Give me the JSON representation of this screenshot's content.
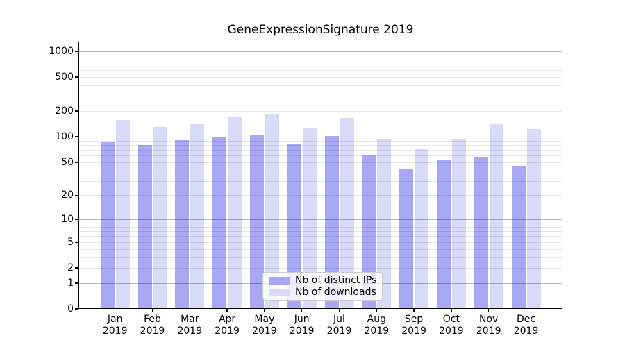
{
  "chart_data": {
    "type": "bar",
    "title": "GeneExpressionSignature 2019",
    "x_year": "2019",
    "categories": [
      "Jan",
      "Feb",
      "Mar",
      "Apr",
      "May",
      "Jun",
      "Jul",
      "Aug",
      "Sep",
      "Oct",
      "Nov",
      "Dec"
    ],
    "series": [
      {
        "name": "Nb of distinct IPs",
        "color": "#a8a8f4",
        "values": [
          87,
          80,
          91,
          101,
          105,
          83,
          103,
          60,
          41,
          54,
          58,
          45
        ]
      },
      {
        "name": "Nb of downloads",
        "color": "#d9d9f8",
        "values": [
          158,
          131,
          143,
          169,
          187,
          126,
          167,
          93,
          73,
          95,
          141,
          124
        ]
      }
    ],
    "y_axis": {
      "scale": "symlog: position proportional to log10(1 + value)",
      "ticks": [
        0,
        1,
        2,
        5,
        10,
        20,
        50,
        100,
        200,
        500,
        1000
      ],
      "ylim": [
        0,
        1300
      ]
    },
    "grid": "horizontal, minor lines at 2-9 per decade, major lines at powers of 10, drawn over bars",
    "legend_position": "lower center inside plot",
    "colors": {
      "axis": "#000000",
      "grid_major": "#bdbdbd",
      "grid_minor": "#e9e9e9",
      "background": "#ffffff"
    }
  }
}
